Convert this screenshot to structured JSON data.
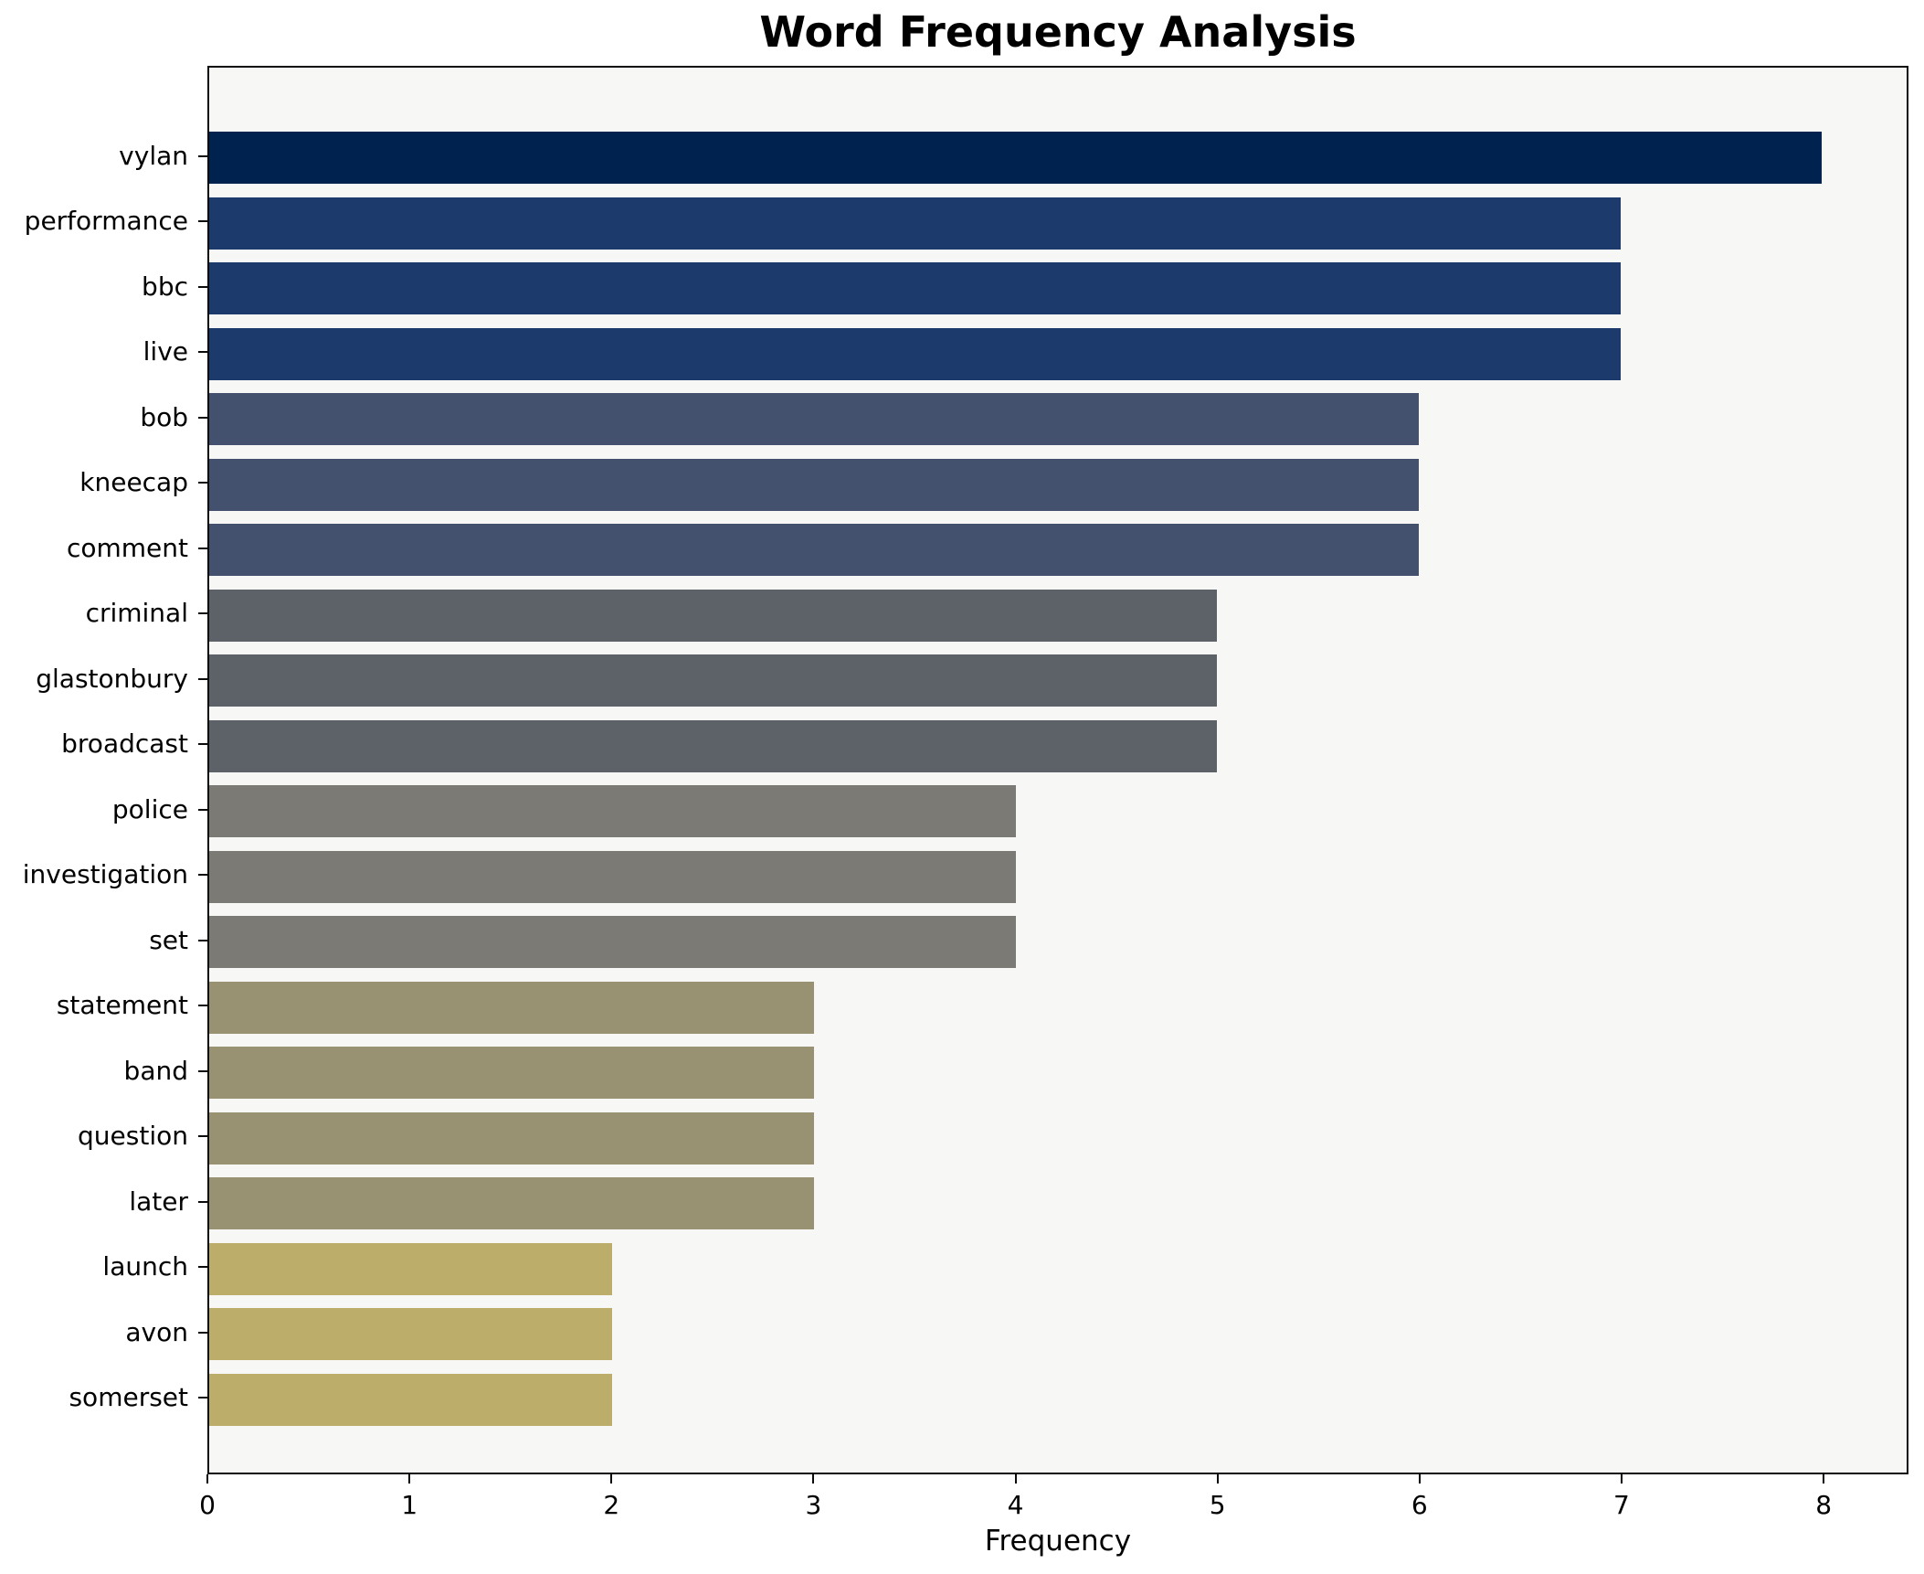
{
  "chart_data": {
    "type": "bar",
    "orientation": "horizontal",
    "title": "Word Frequency Analysis",
    "xlabel": "Frequency",
    "ylabel": "",
    "categories": [
      "vylan",
      "performance",
      "bbc",
      "live",
      "bob",
      "kneecap",
      "comment",
      "criminal",
      "glastonbury",
      "broadcast",
      "police",
      "investigation",
      "set",
      "statement",
      "band",
      "question",
      "later",
      "launch",
      "avon",
      "somerset"
    ],
    "values": [
      8,
      7,
      7,
      7,
      6,
      6,
      6,
      5,
      5,
      5,
      4,
      4,
      4,
      3,
      3,
      3,
      3,
      2,
      2,
      2
    ],
    "bar_colors": [
      "#00224e",
      "#1d3a6c",
      "#1d3a6c",
      "#1d3a6c",
      "#43506e",
      "#43506e",
      "#43506e",
      "#5c6268",
      "#5c6268",
      "#5c6268",
      "#7b7a74",
      "#7b7a74",
      "#7b7a74",
      "#999272",
      "#999272",
      "#999272",
      "#999272",
      "#bcad6b",
      "#bcad6b",
      "#bcad6b"
    ],
    "colormap": "cividis",
    "xticks": [
      0,
      1,
      2,
      3,
      4,
      5,
      6,
      7,
      8
    ],
    "xlim": [
      0,
      8.42
    ],
    "grid": false,
    "legend_position": "none",
    "plot_bg": "#f7f7f6",
    "spine_color": "#0b0b0b",
    "text_color": "#000000"
  }
}
